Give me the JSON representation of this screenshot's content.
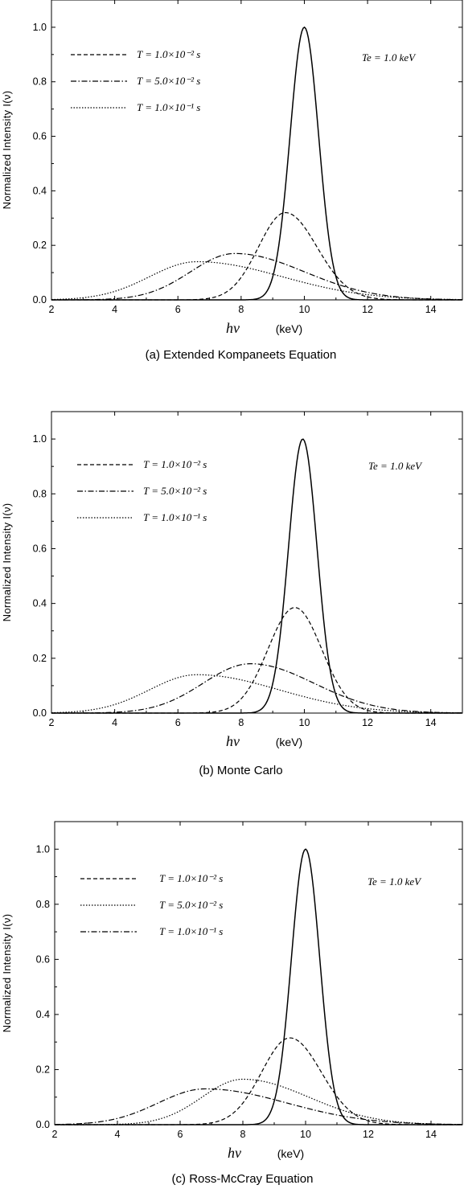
{
  "chart_data": [
    {
      "type": "line",
      "caption": "(a)  Extended Kompaneets Equation",
      "ylabel": "Normalized  Intensity   I(ν)",
      "xlabel_symbol": "hν",
      "xlabel_unit": "(keV)",
      "xlim": [
        2,
        15
      ],
      "ylim": [
        0,
        1.1
      ],
      "xticks": [
        "2",
        "4",
        "6",
        "8",
        "10",
        "12",
        "14"
      ],
      "yticks": [
        "0.0",
        "0.2",
        "0.4",
        "0.6",
        "0.8",
        "1.0"
      ],
      "annotation": "Te = 1.0 keV",
      "legend_placement": "upper-left",
      "series": [
        {
          "label": "T = 1.0×10⁻² s",
          "style": "dashed",
          "peak_x": 9.4,
          "peak_y": 0.32,
          "sigma_left": 0.85,
          "sigma_right": 1.0
        },
        {
          "label": "T = 5.0×10⁻² s",
          "style": "dashdot",
          "peak_x": 7.8,
          "peak_y": 0.17,
          "sigma_left": 1.4,
          "sigma_right": 2.2
        },
        {
          "label": "T = 1.0×10⁻¹ s",
          "style": "dotted",
          "peak_x": 6.6,
          "peak_y": 0.14,
          "sigma_left": 1.5,
          "sigma_right": 2.7
        },
        {
          "label": "",
          "style": "solid",
          "peak_x": 10.0,
          "peak_y": 1.0,
          "sigma_left": 0.45,
          "sigma_right": 0.45
        }
      ]
    },
    {
      "type": "line",
      "caption": "(b)  Monte Carlo",
      "ylabel": "Normalized  Intensity   I(ν)",
      "xlabel_symbol": "hν",
      "xlabel_unit": "(keV)",
      "xlim": [
        2,
        15
      ],
      "ylim": [
        0,
        1.1
      ],
      "xticks": [
        "2",
        "4",
        "6",
        "8",
        "10",
        "12",
        "14"
      ],
      "yticks": [
        "0.0",
        "0.2",
        "0.4",
        "0.6",
        "0.8",
        "1.0"
      ],
      "annotation": "Te = 1.0 keV",
      "legend_placement": "upper-left",
      "series": [
        {
          "label": "T = 1.0×10⁻² s",
          "style": "dashed",
          "peak_x": 9.7,
          "peak_y": 0.385,
          "sigma_left": 0.85,
          "sigma_right": 0.85
        },
        {
          "label": "T = 5.0×10⁻² s",
          "style": "dashdot",
          "peak_x": 8.3,
          "peak_y": 0.18,
          "sigma_left": 1.5,
          "sigma_right": 2.0
        },
        {
          "label": "T = 1.0×10⁻¹ s",
          "style": "dotted",
          "peak_x": 6.6,
          "peak_y": 0.14,
          "sigma_left": 1.5,
          "sigma_right": 2.6
        },
        {
          "label": "",
          "style": "solid",
          "peak_x": 9.95,
          "peak_y": 1.0,
          "sigma_left": 0.45,
          "sigma_right": 0.45
        }
      ]
    },
    {
      "type": "line",
      "caption": "(c)  Ross-McCray Equation",
      "ylabel": "Normalized  Intensity   I(ν)",
      "xlabel_symbol": "hν",
      "xlabel_unit": "(keV)",
      "xlim": [
        2,
        15
      ],
      "ylim": [
        0,
        1.1
      ],
      "xticks": [
        "2",
        "4",
        "6",
        "8",
        "10",
        "12",
        "14"
      ],
      "yticks": [
        "0.0",
        "0.2",
        "0.4",
        "0.6",
        "0.8",
        "1.0"
      ],
      "annotation": "Te = 1.0 keV",
      "legend_placement": "upper-left",
      "series": [
        {
          "label": "T = 1.0×10⁻² s",
          "style": "dashed",
          "peak_x": 9.5,
          "peak_y": 0.315,
          "sigma_left": 0.9,
          "sigma_right": 1.0
        },
        {
          "label": "T = 5.0×10⁻² s",
          "style": "dotted",
          "peak_x": 8.0,
          "peak_y": 0.165,
          "sigma_left": 1.3,
          "sigma_right": 2.1
        },
        {
          "label": "T = 1.0×10⁻¹ s",
          "style": "dashdot",
          "peak_x": 6.8,
          "peak_y": 0.13,
          "sigma_left": 1.5,
          "sigma_right": 2.6
        },
        {
          "label": "",
          "style": "solid",
          "peak_x": 10.0,
          "peak_y": 1.0,
          "sigma_left": 0.45,
          "sigma_right": 0.45
        }
      ]
    }
  ]
}
